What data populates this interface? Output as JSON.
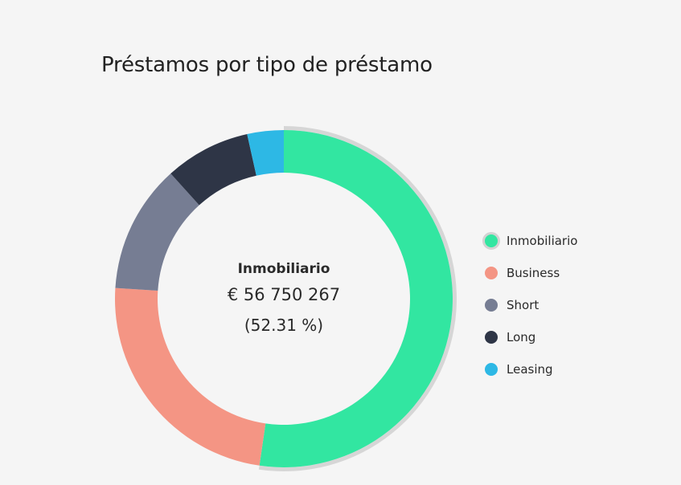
{
  "title": "Préstamos por tipo de préstamo",
  "center": {
    "name": "Inmobiliario",
    "value": "€ 56 750 267",
    "percent": "(52.31 %)"
  },
  "chart_data": {
    "type": "pie",
    "variant": "donut",
    "title": "Préstamos por tipo de préstamo",
    "categories": [
      "Inmobiliario",
      "Business",
      "Short",
      "Long",
      "Leasing"
    ],
    "values": [
      52.31,
      23.7,
      12.3,
      8.2,
      3.49
    ],
    "unit": "%",
    "colors": [
      "#32e6a1",
      "#f49584",
      "#767d93",
      "#2e3546",
      "#2db8e5"
    ],
    "selected": "Inmobiliario",
    "selected_value": "€ 56 750 267",
    "legend_position": "right"
  }
}
